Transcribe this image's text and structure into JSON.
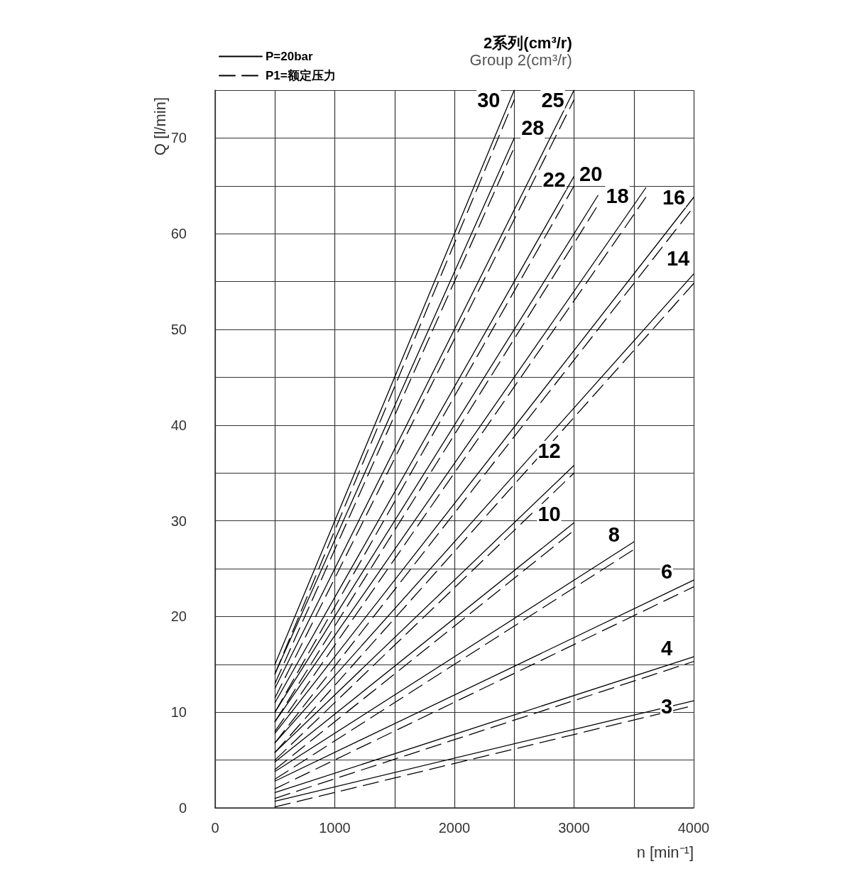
{
  "chart_data": {
    "type": "line",
    "title": "2系列(cm³/r)",
    "subtitle": "Group 2(cm³/r)",
    "xlabel": "n [min⁻¹]",
    "ylabel": "Q [l/min]",
    "xlim": [
      0,
      4000
    ],
    "xticks": [
      0,
      {
        "value": 500,
        "label": null
      },
      1000,
      {
        "value": 1500,
        "label": null
      },
      2000,
      {
        "value": 2500,
        "label": null
      },
      3000,
      {
        "value": 3500,
        "label": null
      },
      4000
    ],
    "ylim": [
      0,
      75
    ],
    "yticks": [
      0,
      {
        "value": 5,
        "label": null
      },
      10,
      {
        "value": 15,
        "label": null
      },
      20,
      {
        "value": 25,
        "label": null
      },
      30,
      {
        "value": 35,
        "label": null
      },
      40,
      {
        "value": 45,
        "label": null
      },
      50,
      {
        "value": 55,
        "label": null
      },
      60,
      {
        "value": 65,
        "label": null
      },
      70,
      {
        "value": 75,
        "label": null
      }
    ],
    "grid": true,
    "legend": "top left",
    "marker": "none",
    "series": [
      {
        "name": "P=20bar",
        "color": "#000000",
        "line_style": "solid",
        "x": [
          500,
          4000
        ],
        "values": [
          0.7,
          11.2
        ]
      },
      {
        "name": "P1=额定压力",
        "color": "#000000",
        "line_style": "dashed",
        "x": [
          500,
          4000
        ],
        "values": [
          0.1,
          10.7
        ]
      },
      {
        "color": "#000000",
        "line_style": "solid",
        "x": [
          500,
          4000
        ],
        "values": [
          1.6,
          15.8
        ]
      },
      {
        "color": "#000000",
        "line_style": "dashed",
        "x": [
          500,
          4000
        ],
        "values": [
          1.0,
          15.3
        ]
      },
      {
        "color": "#000000",
        "line_style": "solid",
        "x": [
          500,
          4000
        ],
        "values": [
          2.8,
          23.8
        ]
      },
      {
        "color": "#000000",
        "line_style": "dashed",
        "x": [
          500,
          4000
        ],
        "values": [
          2.0,
          23.1
        ]
      },
      {
        "color": "#000000",
        "line_style": "solid",
        "x": [
          500,
          3500
        ],
        "values": [
          3.8,
          27.8
        ]
      },
      {
        "color": "#000000",
        "line_style": "dashed",
        "x": [
          500,
          3500
        ],
        "values": [
          3.0,
          27.0
        ]
      },
      {
        "color": "#000000",
        "line_style": "solid",
        "x": [
          500,
          3000
        ],
        "values": [
          4.8,
          29.8
        ]
      },
      {
        "color": "#000000",
        "line_style": "dashed",
        "x": [
          500,
          3000
        ],
        "values": [
          4.0,
          29.0
        ]
      },
      {
        "color": "#000000",
        "line_style": "solid",
        "x": [
          500,
          3000
        ],
        "values": [
          5.8,
          35.8
        ]
      },
      {
        "color": "#000000",
        "line_style": "dashed",
        "x": [
          500,
          3000
        ],
        "values": [
          5.0,
          35.0
        ]
      },
      {
        "color": "#000000",
        "line_style": "solid",
        "x": [
          500,
          4000
        ],
        "values": [
          6.8,
          55.8
        ]
      },
      {
        "color": "#000000",
        "line_style": "dashed",
        "x": [
          500,
          4000
        ],
        "values": [
          5.8,
          54.8
        ]
      },
      {
        "color": "#000000",
        "line_style": "solid",
        "x": [
          500,
          4000
        ],
        "values": [
          7.8,
          63.8
        ]
      },
      {
        "color": "#000000",
        "line_style": "dashed",
        "x": [
          500,
          4000
        ],
        "values": [
          6.8,
          62.8
        ]
      },
      {
        "color": "#000000",
        "line_style": "solid",
        "x": [
          500,
          3600
        ],
        "values": [
          9.0,
          64.8
        ]
      },
      {
        "color": "#000000",
        "line_style": "dashed",
        "x": [
          500,
          3600
        ],
        "values": [
          8.0,
          63.8
        ]
      },
      {
        "color": "#000000",
        "line_style": "solid",
        "x": [
          500,
          3200
        ],
        "values": [
          10.0,
          64.0
        ]
      },
      {
        "color": "#000000",
        "line_style": "dashed",
        "x": [
          500,
          3200
        ],
        "values": [
          9.0,
          63.0
        ]
      },
      {
        "color": "#000000",
        "line_style": "solid",
        "x": [
          500,
          3000
        ],
        "values": [
          11.0,
          66.0
        ]
      },
      {
        "color": "#000000",
        "line_style": "dashed",
        "x": [
          500,
          3000
        ],
        "values": [
          10.0,
          65.0
        ]
      },
      {
        "color": "#000000",
        "line_style": "solid",
        "x": [
          500,
          3000
        ],
        "values": [
          12.5,
          75.0
        ]
      },
      {
        "color": "#000000",
        "line_style": "dashed",
        "x": [
          500,
          3000
        ],
        "values": [
          11.5,
          74.0
        ]
      },
      {
        "color": "#000000",
        "line_style": "solid",
        "x": [
          500,
          2500
        ],
        "values": [
          14.0,
          70.0
        ]
      },
      {
        "color": "#000000",
        "line_style": "dashed",
        "x": [
          500,
          2500
        ],
        "values": [
          13.0,
          69.0
        ]
      },
      {
        "color": "#000000",
        "line_style": "solid",
        "x": [
          500,
          2500
        ],
        "values": [
          15.0,
          75.0
        ]
      },
      {
        "color": "#000000",
        "line_style": "dashed",
        "x": [
          500,
          2500
        ],
        "values": [
          14.0,
          74.0
        ]
      }
    ],
    "annotations": [
      "3",
      "4",
      "6",
      "8",
      "10",
      "12",
      "14",
      "16",
      "18",
      "20",
      "22",
      "25",
      "28",
      "30"
    ]
  }
}
